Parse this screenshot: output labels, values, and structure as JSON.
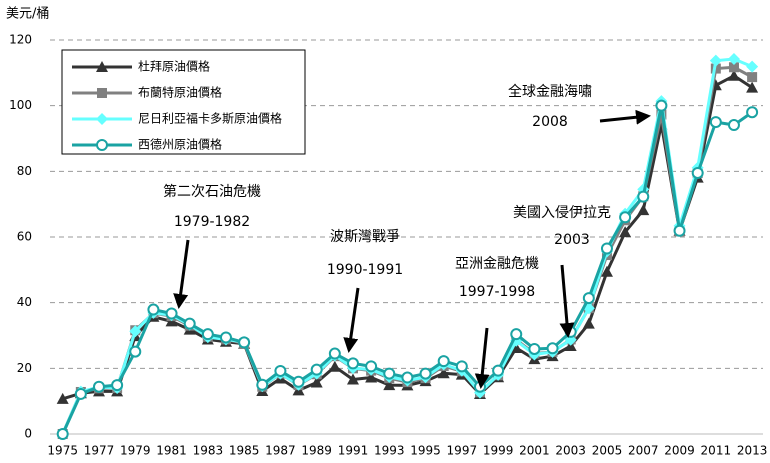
{
  "chart_data": {
    "type": "line",
    "y_axis_label": "美元/桶",
    "x": [
      1975,
      1976,
      1977,
      1978,
      1979,
      1980,
      1981,
      1982,
      1983,
      1984,
      1985,
      1986,
      1987,
      1988,
      1989,
      1990,
      1991,
      1992,
      1993,
      1994,
      1995,
      1996,
      1997,
      1998,
      1999,
      2000,
      2001,
      2002,
      2003,
      2004,
      2005,
      2006,
      2007,
      2008,
      2009,
      2010,
      2011,
      2012,
      2013
    ],
    "xlim": [
      1974.3,
      2013.6
    ],
    "xticks": [
      1975,
      1977,
      1979,
      1981,
      1983,
      1985,
      1987,
      1989,
      1991,
      1993,
      1995,
      1997,
      1999,
      2001,
      2003,
      2005,
      2007,
      2009,
      2011,
      2013
    ],
    "ylim": [
      0,
      120
    ],
    "yticks": [
      0,
      20,
      40,
      60,
      80,
      100,
      120
    ],
    "grid": true,
    "legend": "upper left",
    "series": [
      {
        "name": "杜拜原油價格",
        "color": "#333333",
        "marker": "triangle",
        "values": [
          10.7,
          12.4,
          13.0,
          13.0,
          29.8,
          35.7,
          34.3,
          31.8,
          28.8,
          28.1,
          27.5,
          13.1,
          16.9,
          13.3,
          15.7,
          20.5,
          16.6,
          17.2,
          14.9,
          14.8,
          16.1,
          18.5,
          18.1,
          12.2,
          17.3,
          26.2,
          22.8,
          23.7,
          26.8,
          33.6,
          49.4,
          61.5,
          68.2,
          94.3,
          61.9,
          78.1,
          106.2,
          109.1,
          105.5
        ]
      },
      {
        "name": "布蘭特原油價格",
        "color": "#808080",
        "marker": "square",
        "values": [
          0,
          12.8,
          13.9,
          14.0,
          31.6,
          36.8,
          35.9,
          33.0,
          29.6,
          28.8,
          27.6,
          14.4,
          18.4,
          14.9,
          18.2,
          23.7,
          20.0,
          19.3,
          17.0,
          15.8,
          17.0,
          20.7,
          19.1,
          12.7,
          17.9,
          28.7,
          24.5,
          25.0,
          28.8,
          38.3,
          54.5,
          65.1,
          72.4,
          97.3,
          61.7,
          79.5,
          111.3,
          111.7,
          108.7
        ]
      },
      {
        "name": "尼日利亞福卡多斯原油價格",
        "color": "#66ffff",
        "marker": "diamond",
        "values": [
          0,
          12.9,
          14.3,
          14.0,
          31.3,
          36.9,
          36.2,
          33.3,
          29.5,
          28.8,
          28.0,
          14.6,
          18.4,
          15.0,
          18.4,
          23.9,
          20.1,
          19.6,
          17.4,
          16.3,
          17.3,
          21.2,
          19.3,
          12.6,
          18.0,
          28.4,
          24.2,
          25.0,
          28.7,
          38.3,
          55.6,
          67.1,
          74.5,
          101.4,
          63.4,
          81.1,
          113.7,
          114.2,
          111.9
        ]
      },
      {
        "name": "西德州原油價格",
        "color": "#1aa3a3",
        "marker": "circle",
        "values": [
          0,
          12.2,
          14.4,
          14.9,
          25.1,
          37.9,
          36.7,
          33.6,
          30.4,
          29.4,
          27.9,
          15.0,
          19.2,
          15.9,
          19.6,
          24.5,
          21.5,
          20.6,
          18.4,
          17.2,
          18.4,
          22.2,
          20.6,
          14.4,
          19.3,
          30.4,
          25.9,
          26.1,
          31.1,
          41.4,
          56.5,
          66.0,
          72.3,
          100.0,
          61.9,
          79.5,
          95.0,
          94.1,
          98.0
        ]
      }
    ],
    "annotations": [
      {
        "label": "第二次石油危機",
        "period": "1979-1982"
      },
      {
        "label": "波斯灣戰爭",
        "period": "1990-1991"
      },
      {
        "label": "亞洲金融危機",
        "period": "1997-1998"
      },
      {
        "label": "美國入侵伊拉克",
        "period": "2003"
      },
      {
        "label": "全球金融海嘯",
        "period": "2008"
      }
    ]
  }
}
